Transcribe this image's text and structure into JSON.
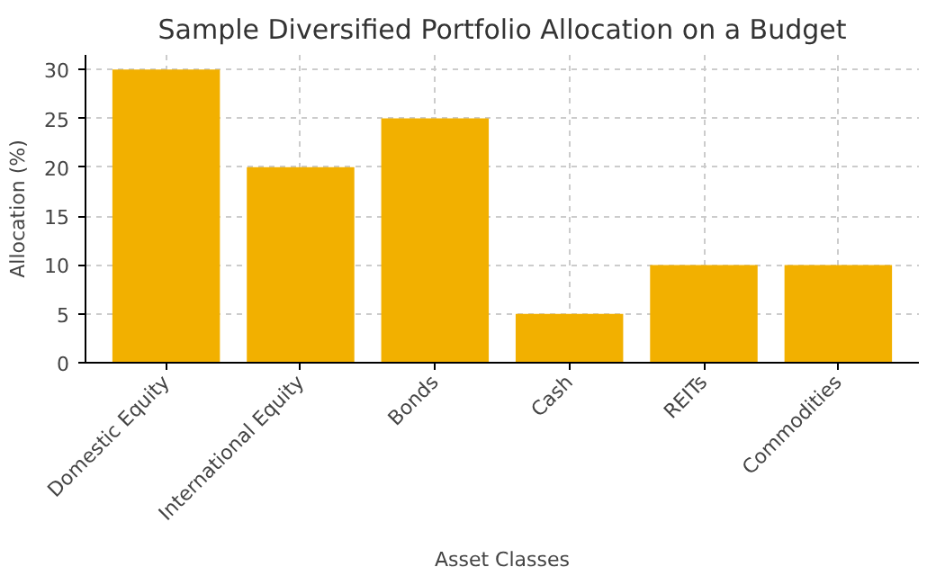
{
  "chart_data": {
    "type": "bar",
    "title": "Sample Diversified Portfolio Allocation on a Budget",
    "xlabel": "Asset Classes",
    "ylabel": "Allocation (%)",
    "categories": [
      "Domestic Equity",
      "International Equity",
      "Bonds",
      "Cash",
      "REITs",
      "Commodities"
    ],
    "values": [
      30,
      20,
      25,
      5,
      10,
      10
    ],
    "color": "#f2b000",
    "ylim": [
      0,
      31.5
    ],
    "yticks": [
      0,
      5,
      10,
      15,
      20,
      25,
      30
    ],
    "grid": true
  }
}
